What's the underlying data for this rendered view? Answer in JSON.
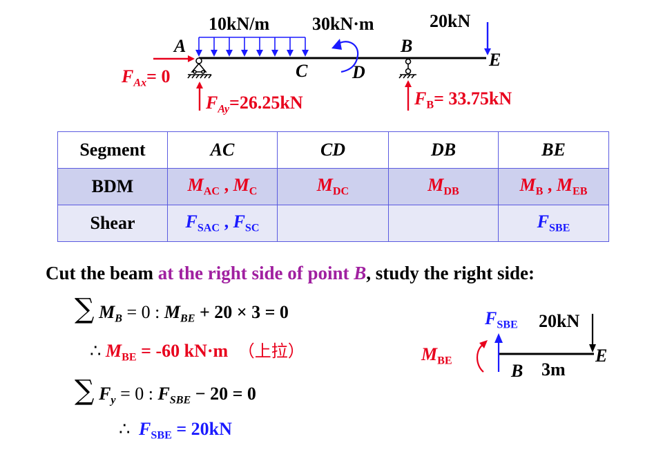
{
  "beam": {
    "load_distributed": "10kN/m",
    "load_moment": "30kN·m",
    "load_point": "20kN",
    "point_a": "A",
    "point_b": "B",
    "point_c": "C",
    "point_d": "D",
    "point_e": "E",
    "fax_main": "F",
    "fax_sub": "Ax",
    "fax_value": "= 0",
    "fay_main": "F",
    "fay_sub": "Ay",
    "fay_value": "=26.25kN",
    "fb_main": "F",
    "fb_sub": "B",
    "fb_value": "= 33.75kN"
  },
  "table": {
    "header": [
      "Segment",
      "AC",
      "CD",
      "DB",
      "BE"
    ],
    "bdm_label": "BDM",
    "bdm": [
      [
        {
          "m": "M",
          "s": "AC"
        },
        {
          "m": "M",
          "s": "C"
        }
      ],
      [
        {
          "m": "M",
          "s": "DC"
        }
      ],
      [
        {
          "m": "M",
          "s": "DB"
        }
      ],
      [
        {
          "m": "M",
          "s": "B"
        },
        {
          "m": "M",
          "s": "EB"
        }
      ]
    ],
    "shear_label": "Shear",
    "shear": [
      [
        {
          "m": "F",
          "s": "SAC"
        },
        {
          "m": "F",
          "s": "SC"
        }
      ],
      [],
      [],
      [
        {
          "m": "F",
          "s": "SBE"
        }
      ]
    ],
    "separator": " , "
  },
  "instruction": {
    "part1": "Cut the beam ",
    "part2": "at the right side of point ",
    "part3": "B",
    "part4": ", study the right side:"
  },
  "equations": {
    "sum_symbol": "∑",
    "eq1_m": "M",
    "eq1_sub": "B",
    "eq1_mid": " = 0 :  ",
    "eq1_m2": "M",
    "eq1_sub2": "BE",
    "eq1_rest": " + 20 × 3 = 0",
    "therefore": "∴",
    "res1_m": "M",
    "res1_sub": "BE",
    "res1_value": " = -60 kN·m",
    "res1_note": "（上拉）",
    "eq2_f": "F",
    "eq2_sub": "y",
    "eq2_mid": " = 0 :  ",
    "eq2_f2": "F",
    "eq2_sub2": "SBE",
    "eq2_rest": " − 20 = 0",
    "res2_f": "F",
    "res2_sub": "SBE",
    "res2_value": " = 20kN"
  },
  "fbd": {
    "fsbe_main": "F",
    "fsbe_sub": "SBE",
    "load": "20kN",
    "mbe_main": "M",
    "mbe_sub": "BE",
    "point_b": "B",
    "point_e": "E",
    "length": "3m"
  },
  "colors": {
    "red": "#e8001c",
    "blue": "#1a1aff",
    "purple": "#a020a0",
    "table_border": "#5a5ae0",
    "row_bdm": "#cdd0ee",
    "row_shear": "#e7e8f7"
  }
}
